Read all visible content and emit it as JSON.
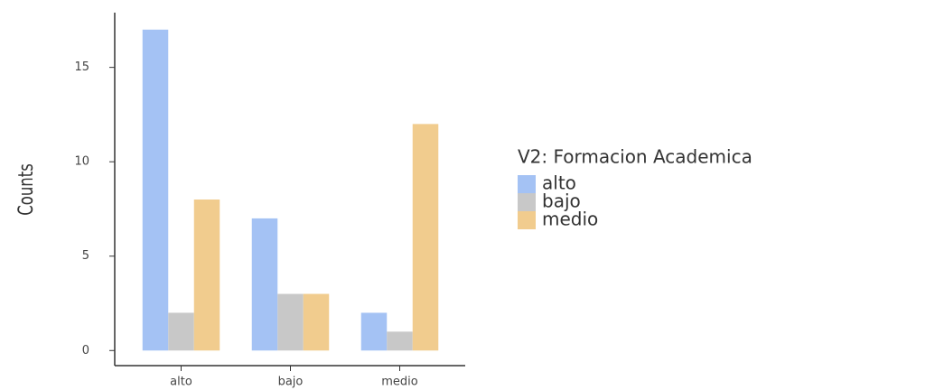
{
  "chart_data": {
    "type": "bar",
    "ylabel": "Counts",
    "categories": [
      "alto",
      "bajo",
      "medio"
    ],
    "legend_title": "V2: Formacion Academica",
    "legend": "right",
    "series": [
      {
        "name": "alto",
        "color": "#a4c2f4",
        "values": [
          17,
          7,
          2
        ]
      },
      {
        "name": "bajo",
        "color": "#c8c8c8",
        "values": [
          2,
          3,
          1
        ]
      },
      {
        "name": "medio",
        "color": "#f1cc8e",
        "values": [
          8,
          3,
          12
        ]
      }
    ],
    "ylim": [
      -0.8,
      17.9
    ],
    "yticks": [
      0,
      5,
      10,
      15
    ],
    "grid": false
  }
}
